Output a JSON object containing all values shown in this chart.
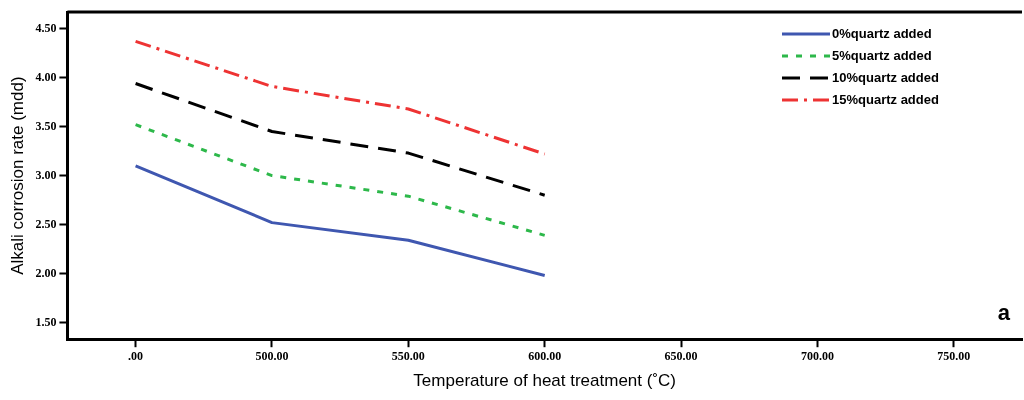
{
  "chart_data": {
    "type": "line",
    "xlabel": "Temperature of heat treatment (˚C)",
    "ylabel": "Alkali corrosion rate (mdd)",
    "categories": [
      ".00",
      "500.00",
      "550.00",
      "600.00",
      "650.00",
      "700.00",
      "750.00"
    ],
    "series": [
      {
        "name": "0%quartz added",
        "color": "#3f57b0",
        "line_style": "solid",
        "values": [
          3.1,
          2.52,
          2.34,
          1.98,
          null,
          null,
          null
        ]
      },
      {
        "name": "5%quartz added",
        "color": "#2db84a",
        "line_style": "dotted",
        "values": [
          3.52,
          3.0,
          2.79,
          2.39,
          null,
          null,
          null
        ]
      },
      {
        "name": "10%quartz added",
        "color": "#000000",
        "line_style": "dashed",
        "values": [
          3.94,
          3.45,
          3.23,
          2.8,
          null,
          null,
          null
        ]
      },
      {
        "name": "15%quartz added",
        "color": "#ee3333",
        "line_style": "dashdot",
        "values": [
          4.37,
          3.91,
          3.68,
          3.22,
          null,
          null,
          null
        ]
      }
    ],
    "ylim": [
      1.33,
      4.67
    ],
    "yticks": [
      {
        "value": 1.5,
        "label": "1.50"
      },
      {
        "value": 2,
        "label": "2.00"
      },
      {
        "value": 2.5,
        "label": "2.50"
      },
      {
        "value": 3,
        "label": "3.00"
      },
      {
        "value": 3.5,
        "label": "3.50"
      },
      {
        "value": 4,
        "label": "4.00"
      },
      {
        "value": 4.5,
        "label": "4.50"
      }
    ],
    "grid": false,
    "legend": "top right",
    "marker": "none",
    "annotations": [
      "a"
    ]
  }
}
